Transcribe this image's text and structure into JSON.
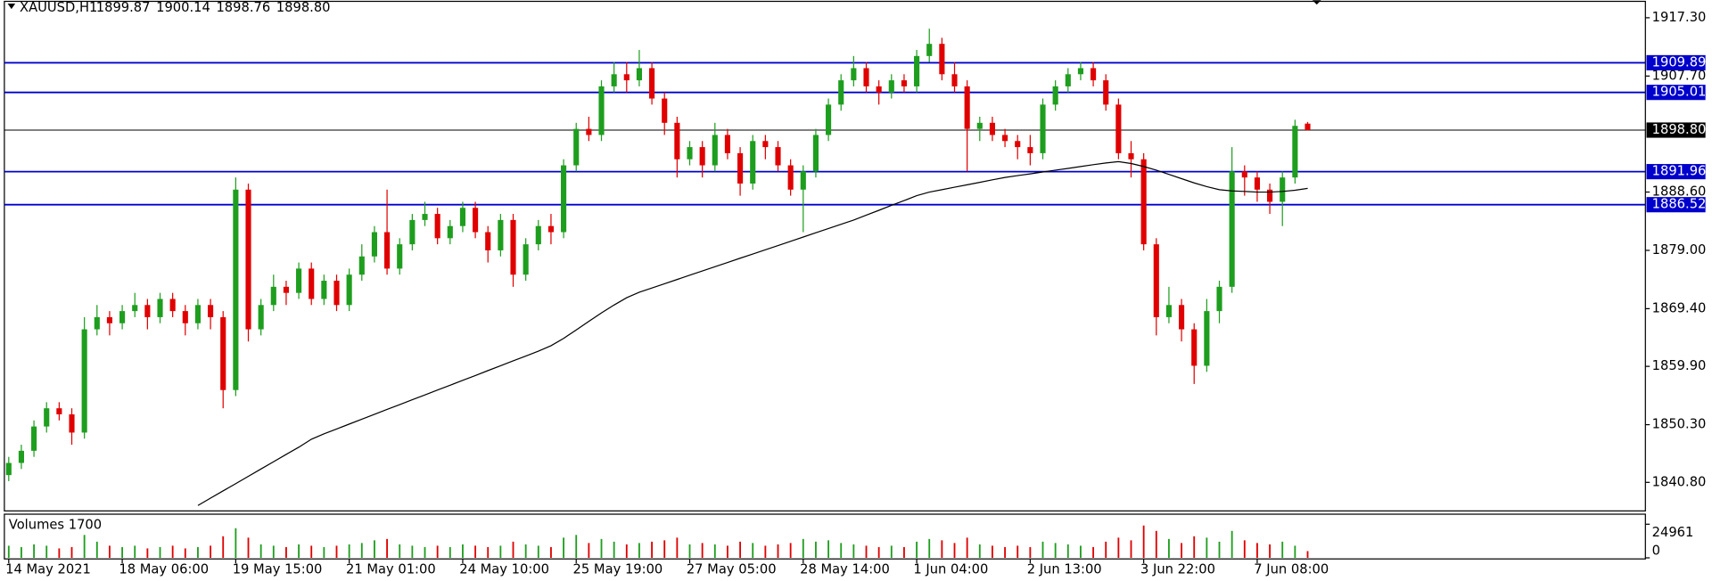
{
  "chart_data": {
    "type": "candlestick",
    "symbol": "XAUUSD,H1",
    "quote": [
      "1899.87",
      "1900.14",
      "1898.76",
      "1898.80"
    ],
    "up_color": "#1e9e1e",
    "down_color": "#e00000",
    "level_color": "#0000cc",
    "ma_color": "#000000",
    "ylim": [
      1836.1,
      1920.0
    ],
    "yticks": [
      {
        "value": 1917.3,
        "label": "1917.30"
      },
      {
        "value": 1907.7,
        "label": "1907.70"
      },
      {
        "value": 1888.6,
        "label": "1888.60"
      },
      {
        "value": 1879.0,
        "label": "1879.00"
      },
      {
        "value": 1869.4,
        "label": "1869.40"
      },
      {
        "value": 1859.9,
        "label": "1859.90"
      },
      {
        "value": 1850.3,
        "label": "1850.30"
      },
      {
        "value": 1840.8,
        "label": "1840.80"
      }
    ],
    "levels": [
      1909.89,
      1905.01,
      1891.96,
      1886.52
    ],
    "current_price": {
      "value": 1898.8,
      "label": "1898.80"
    },
    "categories": [
      "14 May 2021",
      null,
      null,
      null,
      null,
      null,
      null,
      null,
      null,
      "18 May 06:00",
      null,
      null,
      null,
      null,
      null,
      null,
      null,
      null,
      "19 May 15:00",
      null,
      null,
      null,
      null,
      null,
      null,
      null,
      null,
      "21 May 01:00",
      null,
      null,
      null,
      null,
      null,
      null,
      null,
      null,
      "24 May 10:00",
      null,
      null,
      null,
      null,
      null,
      null,
      null,
      null,
      "25 May 19:00",
      null,
      null,
      null,
      null,
      null,
      null,
      null,
      null,
      "27 May 05:00",
      null,
      null,
      null,
      null,
      null,
      null,
      null,
      null,
      "28 May 14:00",
      null,
      null,
      null,
      null,
      null,
      null,
      null,
      null,
      "1 Jun 04:00",
      null,
      null,
      null,
      null,
      null,
      null,
      null,
      null,
      "2 Jun 13:00",
      null,
      null,
      null,
      null,
      null,
      null,
      null,
      null,
      "3 Jun 22:00",
      null,
      null,
      null,
      null,
      null,
      null,
      null,
      null,
      "7 Jun 08:00",
      null,
      null,
      null,
      null
    ],
    "ohlc": [
      [
        1842,
        1845,
        1841,
        1844
      ],
      [
        1844,
        1847,
        1843,
        1846
      ],
      [
        1846,
        1851,
        1845,
        1850
      ],
      [
        1850,
        1854,
        1849,
        1853
      ],
      [
        1853,
        1854,
        1851,
        1852
      ],
      [
        1852,
        1853,
        1847,
        1849
      ],
      [
        1849,
        1868,
        1848,
        1866
      ],
      [
        1866,
        1870,
        1865,
        1868
      ],
      [
        1868,
        1869,
        1865,
        1867
      ],
      [
        1867,
        1870,
        1866,
        1869
      ],
      [
        1869,
        1872,
        1868,
        1870
      ],
      [
        1870,
        1871,
        1866,
        1868
      ],
      [
        1868,
        1872,
        1867,
        1871
      ],
      [
        1871,
        1872,
        1868,
        1869
      ],
      [
        1869,
        1870,
        1865,
        1867
      ],
      [
        1867,
        1871,
        1866,
        1870
      ],
      [
        1870,
        1871,
        1866,
        1868
      ],
      [
        1868,
        1869,
        1853,
        1856
      ],
      [
        1856,
        1891,
        1855,
        1889
      ],
      [
        1889,
        1890,
        1864,
        1866
      ],
      [
        1866,
        1871,
        1865,
        1870
      ],
      [
        1870,
        1875,
        1869,
        1873
      ],
      [
        1873,
        1874,
        1870,
        1872
      ],
      [
        1872,
        1877,
        1871,
        1876
      ],
      [
        1876,
        1877,
        1870,
        1871
      ],
      [
        1871,
        1875,
        1870,
        1874
      ],
      [
        1874,
        1875,
        1869,
        1870
      ],
      [
        1870,
        1876,
        1869,
        1875
      ],
      [
        1875,
        1880,
        1874,
        1878
      ],
      [
        1878,
        1883,
        1877,
        1882
      ],
      [
        1882,
        1889,
        1875,
        1876
      ],
      [
        1876,
        1881,
        1875,
        1880
      ],
      [
        1880,
        1885,
        1879,
        1884
      ],
      [
        1884,
        1887,
        1883,
        1885
      ],
      [
        1885,
        1886,
        1880,
        1881
      ],
      [
        1881,
        1884,
        1880,
        1883
      ],
      [
        1883,
        1887,
        1882,
        1886
      ],
      [
        1886,
        1887,
        1881,
        1882
      ],
      [
        1882,
        1883,
        1877,
        1879
      ],
      [
        1879,
        1885,
        1878,
        1884
      ],
      [
        1884,
        1885,
        1873,
        1875
      ],
      [
        1875,
        1881,
        1874,
        1880
      ],
      [
        1880,
        1884,
        1879,
        1883
      ],
      [
        1883,
        1885,
        1880,
        1882
      ],
      [
        1882,
        1894,
        1881,
        1893
      ],
      [
        1893,
        1900,
        1892,
        1899
      ],
      [
        1899,
        1901,
        1897,
        1898
      ],
      [
        1898,
        1907,
        1897,
        1906
      ],
      [
        1906,
        1910,
        1905,
        1908
      ],
      [
        1908,
        1910,
        1905,
        1907
      ],
      [
        1907,
        1912,
        1906,
        1909
      ],
      [
        1909,
        1910,
        1903,
        1904
      ],
      [
        1904,
        1905,
        1898,
        1900
      ],
      [
        1900,
        1901,
        1891,
        1894
      ],
      [
        1894,
        1897,
        1893,
        1896
      ],
      [
        1896,
        1897,
        1891,
        1893
      ],
      [
        1893,
        1900,
        1892,
        1898
      ],
      [
        1898,
        1899,
        1894,
        1895
      ],
      [
        1895,
        1896,
        1888,
        1890
      ],
      [
        1890,
        1898,
        1889,
        1897
      ],
      [
        1897,
        1898,
        1894,
        1896
      ],
      [
        1896,
        1897,
        1892,
        1893
      ],
      [
        1893,
        1894,
        1888,
        1889
      ],
      [
        1889,
        1893,
        1882,
        1892
      ],
      [
        1892,
        1899,
        1891,
        1898
      ],
      [
        1898,
        1904,
        1897,
        1903
      ],
      [
        1903,
        1908,
        1902,
        1907
      ],
      [
        1907,
        1911,
        1906,
        1909
      ],
      [
        1909,
        1910,
        1905,
        1906
      ],
      [
        1906,
        1907,
        1903,
        1905
      ],
      [
        1905,
        1908,
        1904,
        1907
      ],
      [
        1907,
        1908,
        1905,
        1906
      ],
      [
        1906,
        1912,
        1905,
        1911
      ],
      [
        1911,
        1915.5,
        1910,
        1913
      ],
      [
        1913,
        1914,
        1907,
        1908
      ],
      [
        1908,
        1910,
        1905,
        1906
      ],
      [
        1906,
        1907,
        1892,
        1899
      ],
      [
        1899,
        1901,
        1897,
        1900
      ],
      [
        1900,
        1901,
        1897,
        1898
      ],
      [
        1898,
        1899,
        1896,
        1897
      ],
      [
        1897,
        1898,
        1894,
        1896
      ],
      [
        1896,
        1898,
        1893,
        1895
      ],
      [
        1895,
        1904,
        1894,
        1903
      ],
      [
        1903,
        1907,
        1902,
        1906
      ],
      [
        1906,
        1909,
        1905,
        1908
      ],
      [
        1908,
        1910,
        1907,
        1909
      ],
      [
        1909,
        1910,
        1906,
        1907
      ],
      [
        1907,
        1908,
        1902,
        1903
      ],
      [
        1903,
        1904,
        1894,
        1895
      ],
      [
        1895,
        1897,
        1891,
        1894
      ],
      [
        1894,
        1895,
        1879,
        1880
      ],
      [
        1880,
        1881,
        1865,
        1868
      ],
      [
        1868,
        1873,
        1867,
        1870
      ],
      [
        1870,
        1871,
        1864,
        1866
      ],
      [
        1866,
        1867,
        1857,
        1860
      ],
      [
        1860,
        1871,
        1859,
        1869
      ],
      [
        1869,
        1874,
        1867,
        1873
      ],
      [
        1873,
        1896,
        1872,
        1892
      ],
      [
        1892,
        1893,
        1888,
        1891
      ],
      [
        1891,
        1892,
        1887,
        1889
      ],
      [
        1889,
        1890,
        1885,
        1887
      ],
      [
        1887,
        1892,
        1883,
        1891
      ],
      [
        1891,
        1900.5,
        1890,
        1899.5
      ],
      [
        1899.87,
        1900.14,
        1898.76,
        1898.8
      ]
    ],
    "volumes": [
      9000,
      8000,
      10000,
      9000,
      7000,
      8000,
      17000,
      12000,
      9000,
      8000,
      9000,
      7000,
      8000,
      9000,
      7000,
      8000,
      9000,
      16000,
      22000,
      15000,
      10000,
      9000,
      8000,
      10000,
      9000,
      8000,
      9000,
      10000,
      11000,
      13000,
      14000,
      10000,
      9000,
      8000,
      9000,
      8000,
      10000,
      9000,
      8000,
      9000,
      12000,
      10000,
      9000,
      8000,
      15000,
      17000,
      11000,
      14000,
      12000,
      10000,
      11000,
      12000,
      13000,
      15000,
      10000,
      11000,
      10000,
      9000,
      12000,
      11000,
      9000,
      10000,
      11000,
      14000,
      12000,
      13000,
      11000,
      10000,
      9000,
      8000,
      9000,
      8000,
      12000,
      14000,
      13000,
      11000,
      15000,
      10000,
      9000,
      8000,
      9000,
      8000,
      12000,
      11000,
      10000,
      9000,
      8000,
      12000,
      15000,
      13000,
      24000,
      20000,
      14000,
      11000,
      16000,
      15000,
      12000,
      20000,
      13000,
      11000,
      10000,
      12000,
      9000,
      5000
    ],
    "volume_label": "Volumes 1700",
    "vylim": [
      0,
      31600
    ],
    "vyticks": [
      24961,
      0
    ],
    "ma": [
      null,
      null,
      null,
      null,
      null,
      null,
      null,
      null,
      null,
      null,
      null,
      null,
      null,
      null,
      null,
      1837.0,
      1838.2,
      1839.4,
      1840.6,
      1841.8,
      1843,
      1844.2,
      1845.4,
      1846.6,
      1847.9,
      1848.8,
      1849.6,
      1850.4,
      1851.2,
      1852,
      1852.8,
      1853.6,
      1854.4,
      1855.2,
      1856,
      1856.8,
      1857.6,
      1858.4,
      1859.2,
      1860,
      1860.8,
      1861.6,
      1862.4,
      1863.3,
      1864.5,
      1865.9,
      1867.3,
      1868.7,
      1870,
      1871.2,
      1872.1,
      1872.8,
      1873.5,
      1874.2,
      1874.9,
      1875.6,
      1876.3,
      1877,
      1877.7,
      1878.4,
      1879.1,
      1879.8,
      1880.5,
      1881.2,
      1881.9,
      1882.6,
      1883.3,
      1884,
      1884.8,
      1885.6,
      1886.4,
      1887.2,
      1888,
      1888.6,
      1889,
      1889.4,
      1889.8,
      1890.2,
      1890.6,
      1891,
      1891.3,
      1891.6,
      1891.9,
      1892.2,
      1892.5,
      1892.8,
      1893.1,
      1893.4,
      1893.6,
      1893.3,
      1892.8,
      1892.2,
      1891.5,
      1890.8,
      1890.1,
      1889.5,
      1889,
      1888.8,
      1888.7,
      1888.6,
      1888.6,
      1888.7,
      1888.9,
      1889.2
    ]
  }
}
